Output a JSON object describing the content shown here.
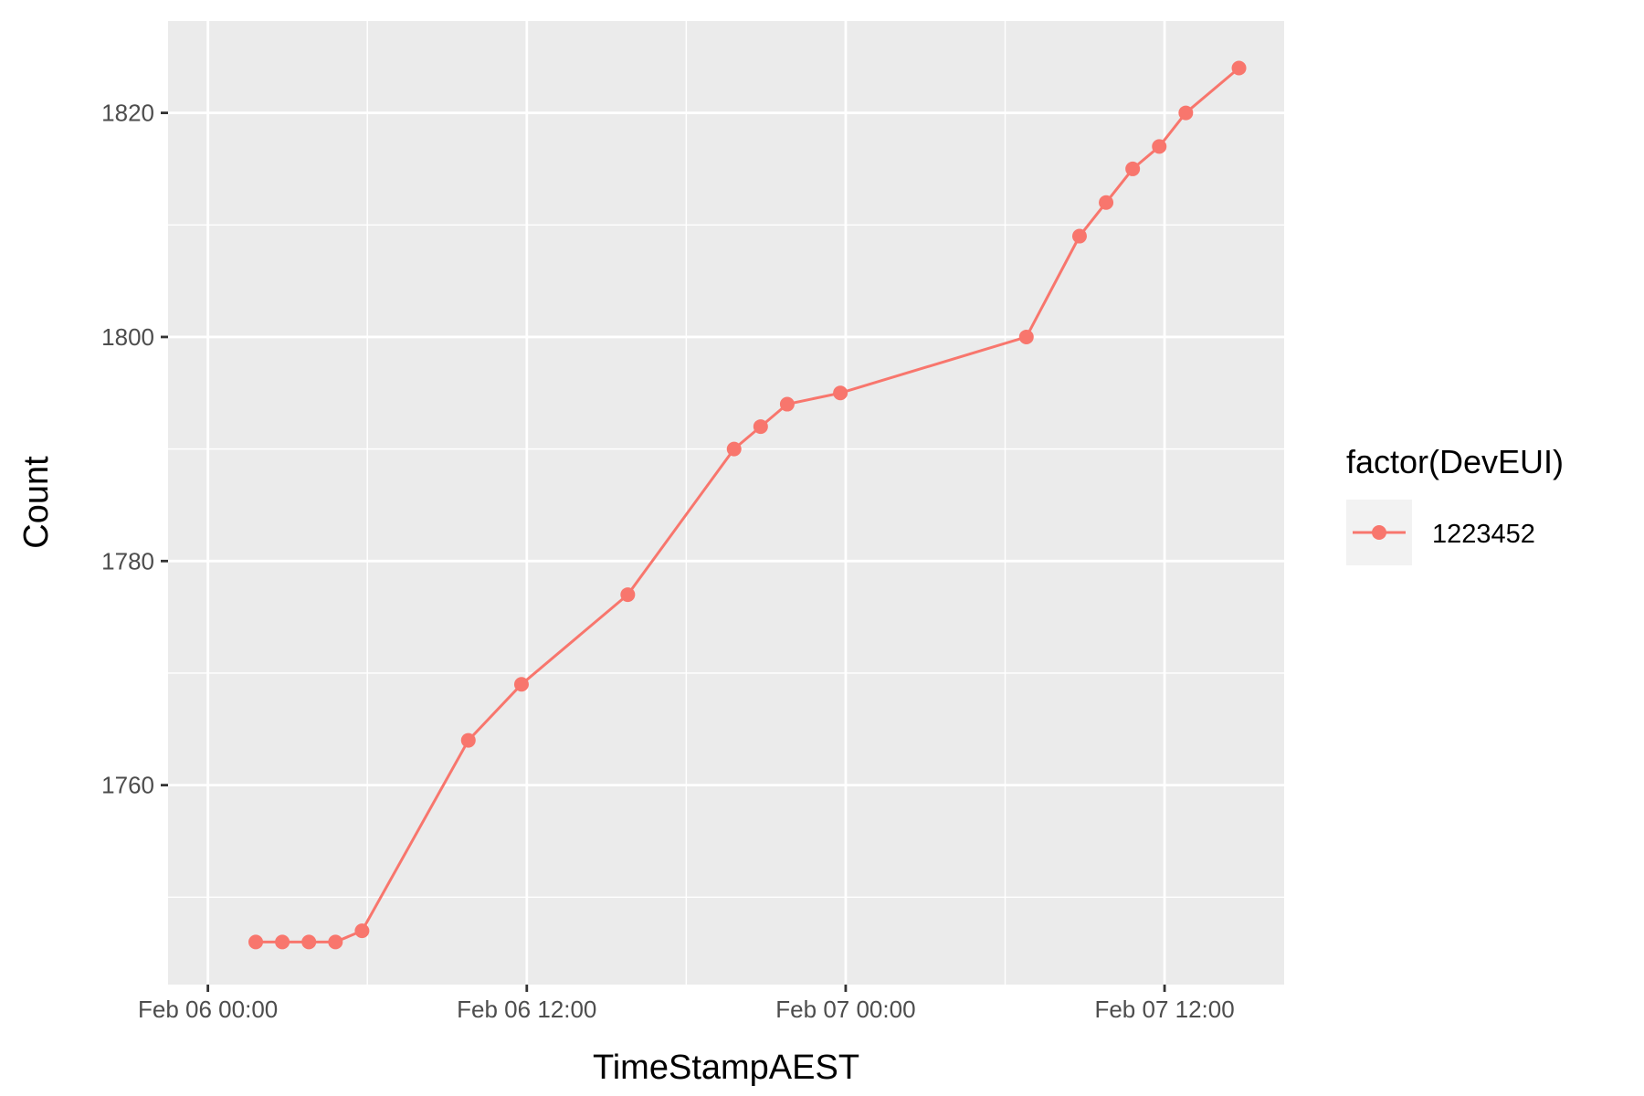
{
  "chart_data": {
    "type": "line",
    "title": "",
    "xlabel": "TimeStampAEST",
    "ylabel": "Count",
    "x_type": "datetime",
    "xlim": [
      "2024-02-05T22:30",
      "2024-02-07T16:30"
    ],
    "ylim": [
      1742.2,
      1828.2
    ],
    "x_ticks": [
      {
        "value": "2024-02-06T00:00",
        "label": "Feb 06 00:00"
      },
      {
        "value": "2024-02-06T12:00",
        "label": "Feb 06 12:00"
      },
      {
        "value": "2024-02-07T00:00",
        "label": "Feb 07 00:00"
      },
      {
        "value": "2024-02-07T12:00",
        "label": "Feb 07 12:00"
      }
    ],
    "y_ticks": [
      1760,
      1780,
      1800,
      1820
    ],
    "grid": true,
    "legend": {
      "title": "factor(DevEUI)",
      "placement": "right"
    },
    "series": [
      {
        "name": "1223452",
        "color": "#F8766D",
        "points": [
          {
            "x": "2024-02-06T01:48",
            "y": 1746
          },
          {
            "x": "2024-02-06T02:48",
            "y": 1746
          },
          {
            "x": "2024-02-06T03:48",
            "y": 1746
          },
          {
            "x": "2024-02-06T04:48",
            "y": 1746
          },
          {
            "x": "2024-02-06T05:48",
            "y": 1747
          },
          {
            "x": "2024-02-06T09:48",
            "y": 1764
          },
          {
            "x": "2024-02-06T11:48",
            "y": 1769
          },
          {
            "x": "2024-02-06T15:48",
            "y": 1777
          },
          {
            "x": "2024-02-06T19:48",
            "y": 1790
          },
          {
            "x": "2024-02-06T20:48",
            "y": 1792
          },
          {
            "x": "2024-02-06T21:48",
            "y": 1794
          },
          {
            "x": "2024-02-06T23:48",
            "y": 1795
          },
          {
            "x": "2024-02-07T06:48",
            "y": 1800
          },
          {
            "x": "2024-02-07T08:48",
            "y": 1809
          },
          {
            "x": "2024-02-07T09:48",
            "y": 1812
          },
          {
            "x": "2024-02-07T10:48",
            "y": 1815
          },
          {
            "x": "2024-02-07T11:48",
            "y": 1817
          },
          {
            "x": "2024-02-07T12:48",
            "y": 1820
          },
          {
            "x": "2024-02-07T14:48",
            "y": 1824
          }
        ]
      }
    ]
  }
}
